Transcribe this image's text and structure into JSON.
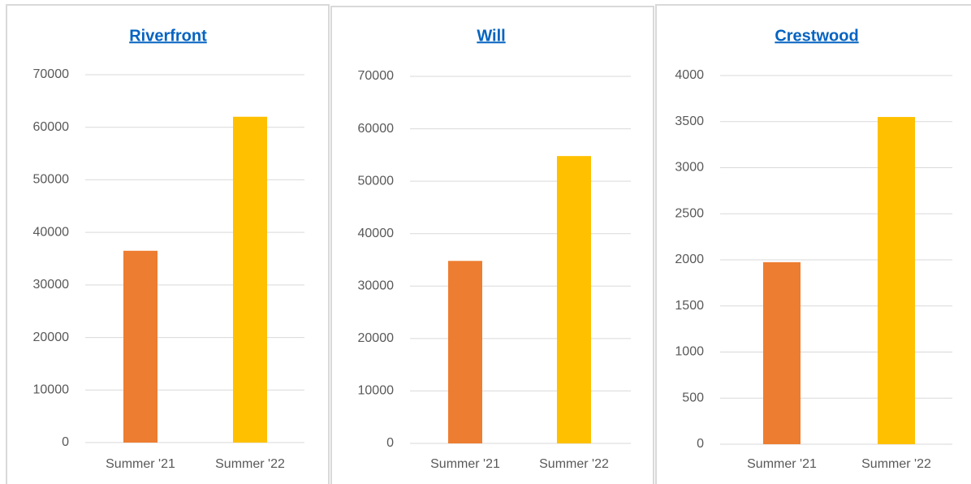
{
  "chart_data": [
    {
      "type": "bar",
      "title": "Riverfront",
      "categories": [
        "Summer '21",
        "Summer '22"
      ],
      "values": [
        36500,
        62000
      ],
      "colors": [
        "#ed7d31",
        "#ffc000"
      ],
      "ylim": [
        0,
        70000
      ],
      "yticks": [
        0,
        10000,
        20000,
        30000,
        40000,
        50000,
        60000,
        70000
      ],
      "grid": true
    },
    {
      "type": "bar",
      "title": "Will",
      "categories": [
        "Summer '21",
        "Summer '22"
      ],
      "values": [
        34800,
        54800
      ],
      "colors": [
        "#ed7d31",
        "#ffc000"
      ],
      "ylim": [
        0,
        70000
      ],
      "yticks": [
        0,
        10000,
        20000,
        30000,
        40000,
        50000,
        60000,
        70000
      ],
      "grid": true
    },
    {
      "type": "bar",
      "title": "Crestwood",
      "categories": [
        "Summer '21",
        "Summer '22"
      ],
      "values": [
        1975,
        3550
      ],
      "colors": [
        "#ed7d31",
        "#ffc000"
      ],
      "ylim": [
        0,
        4000
      ],
      "yticks": [
        0,
        500,
        1000,
        1500,
        2000,
        2500,
        3000,
        3500,
        4000
      ],
      "grid": true
    }
  ]
}
